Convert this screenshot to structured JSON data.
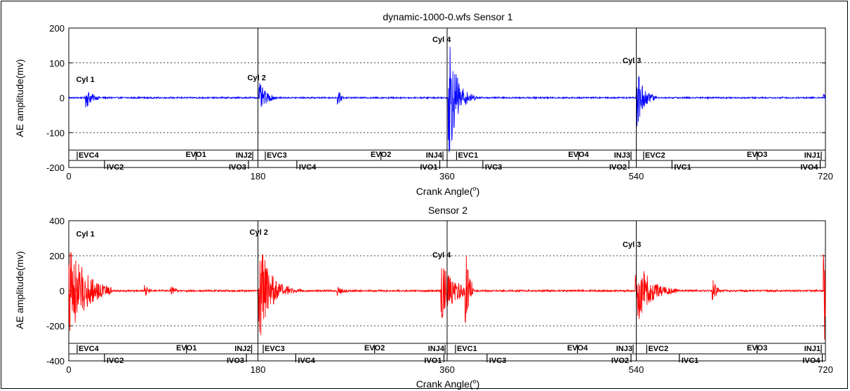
{
  "chart_data": [
    {
      "type": "line",
      "title": "dynamic-1000-0.wfs Sensor 1",
      "xlabel": "Crank Angle(°)",
      "xlabel_main": "Crank Angle(",
      "xlabel_sup": "o",
      "xlabel_end": ")",
      "ylabel": "AE amplitude(mv)",
      "xlim": [
        0,
        720
      ],
      "ylim": [
        -200,
        200
      ],
      "xticks": [
        0,
        180,
        360,
        540,
        720
      ],
      "yticks": [
        -200,
        -100,
        0,
        100,
        200
      ],
      "series_color": "#0000ff",
      "cylinder_lines": [
        180,
        360,
        540
      ],
      "cylinders": [
        {
          "label": "Cyl 1",
          "x": 7,
          "y": 45
        },
        {
          "label": "Cyl 2",
          "x": 170,
          "y": 50
        },
        {
          "label": "Cyl 4",
          "x": 346,
          "y": 160
        },
        {
          "label": "Cyl 3",
          "x": 527,
          "y": 100
        }
      ],
      "bursts": [
        {
          "center": 17,
          "amp": 28,
          "decay": 5,
          "width": 12
        },
        {
          "center": 182,
          "amp": 40,
          "decay": 6,
          "width": 16
        },
        {
          "center": 256,
          "amp": 20,
          "decay": 3,
          "width": 6
        },
        {
          "center": 362,
          "amp": 175,
          "decay": 7,
          "width": 26
        },
        {
          "center": 541,
          "amp": 90,
          "decay": 6,
          "width": 18
        },
        {
          "center": 719,
          "amp": 12,
          "decay": 1,
          "width": 2
        }
      ],
      "noise_amp": 2,
      "events_upper": [
        {
          "label": "EVC4",
          "x": 8
        },
        {
          "label": "EVO1",
          "x": 121
        },
        {
          "label": "INJ2",
          "x": 175
        },
        {
          "label": "EVC3",
          "x": 187
        },
        {
          "label": "EVO2",
          "x": 297
        },
        {
          "label": "INJ4",
          "x": 356
        },
        {
          "label": "EVC1",
          "x": 369
        },
        {
          "label": "EVO4",
          "x": 485
        },
        {
          "label": "INJ3",
          "x": 535
        },
        {
          "label": "EVC2",
          "x": 547
        },
        {
          "label": "EVO3",
          "x": 655
        },
        {
          "label": "INJ1",
          "x": 716
        }
      ],
      "events_lower": [
        {
          "label": "IVC2",
          "x": 34
        },
        {
          "label": "IVO3",
          "x": 171
        },
        {
          "label": "IVC4",
          "x": 217
        },
        {
          "label": "IVO1",
          "x": 353
        },
        {
          "label": "IVC3",
          "x": 394
        },
        {
          "label": "IVO2",
          "x": 533
        },
        {
          "label": "IVC1",
          "x": 574
        },
        {
          "label": "IVO4",
          "x": 715
        }
      ]
    },
    {
      "type": "line",
      "title": "Sensor 2",
      "xlabel": "Crank Angle(°)",
      "xlabel_main": "Crank Angle(",
      "xlabel_sup": "o",
      "xlabel_end": ")",
      "ylabel": "AE amplitude(mv)",
      "xlim": [
        0,
        720
      ],
      "ylim": [
        -400,
        400
      ],
      "xticks": [
        0,
        180,
        360,
        540,
        720
      ],
      "yticks": [
        -400,
        -200,
        0,
        200,
        400
      ],
      "series_color": "#ff0000",
      "cylinder_lines": [
        180,
        360,
        540
      ],
      "cylinders": [
        {
          "label": "Cyl 1",
          "x": 7,
          "y": 310
        },
        {
          "label": "Cyl 2",
          "x": 172,
          "y": 320
        },
        {
          "label": "Cyl 4",
          "x": 346,
          "y": 190
        },
        {
          "label": "Cyl 3",
          "x": 527,
          "y": 250
        }
      ],
      "bursts": [
        {
          "center": 1,
          "amp": 300,
          "decay": 14,
          "width": 40
        },
        {
          "center": 73,
          "amp": 30,
          "decay": 3,
          "width": 6
        },
        {
          "center": 98,
          "amp": 25,
          "decay": 3,
          "width": 6
        },
        {
          "center": 181,
          "amp": 300,
          "decay": 10,
          "width": 40
        },
        {
          "center": 256,
          "amp": 25,
          "decay": 4,
          "width": 10
        },
        {
          "center": 355,
          "amp": 160,
          "decay": 12,
          "width": 30
        },
        {
          "center": 378,
          "amp": 200,
          "decay": 3,
          "width": 6
        },
        {
          "center": 540,
          "amp": 200,
          "decay": 12,
          "width": 40
        },
        {
          "center": 613,
          "amp": 60,
          "decay": 3,
          "width": 6
        },
        {
          "center": 719,
          "amp": 300,
          "decay": 2,
          "width": 4
        }
      ],
      "noise_amp": 5,
      "events_upper": [
        {
          "label": "EVC4",
          "x": 8
        },
        {
          "label": "EVO1",
          "x": 112
        },
        {
          "label": "INJ2",
          "x": 174
        },
        {
          "label": "EVC3",
          "x": 185
        },
        {
          "label": "EVO2",
          "x": 291
        },
        {
          "label": "INJ4",
          "x": 358
        },
        {
          "label": "EVC1",
          "x": 368
        },
        {
          "label": "EVO4",
          "x": 484
        },
        {
          "label": "INJ3",
          "x": 537
        },
        {
          "label": "EVC2",
          "x": 550
        },
        {
          "label": "EVO3",
          "x": 655
        },
        {
          "label": "INJ1",
          "x": 716
        }
      ],
      "events_lower": [
        {
          "label": "IVC2",
          "x": 34
        },
        {
          "label": "IVO3",
          "x": 169
        },
        {
          "label": "IVC4",
          "x": 216
        },
        {
          "label": "IVO1",
          "x": 357
        },
        {
          "label": "IVC3",
          "x": 398
        },
        {
          "label": "IVO2",
          "x": 535
        },
        {
          "label": "IVC1",
          "x": 581
        },
        {
          "label": "IVO4",
          "x": 717
        }
      ]
    }
  ]
}
